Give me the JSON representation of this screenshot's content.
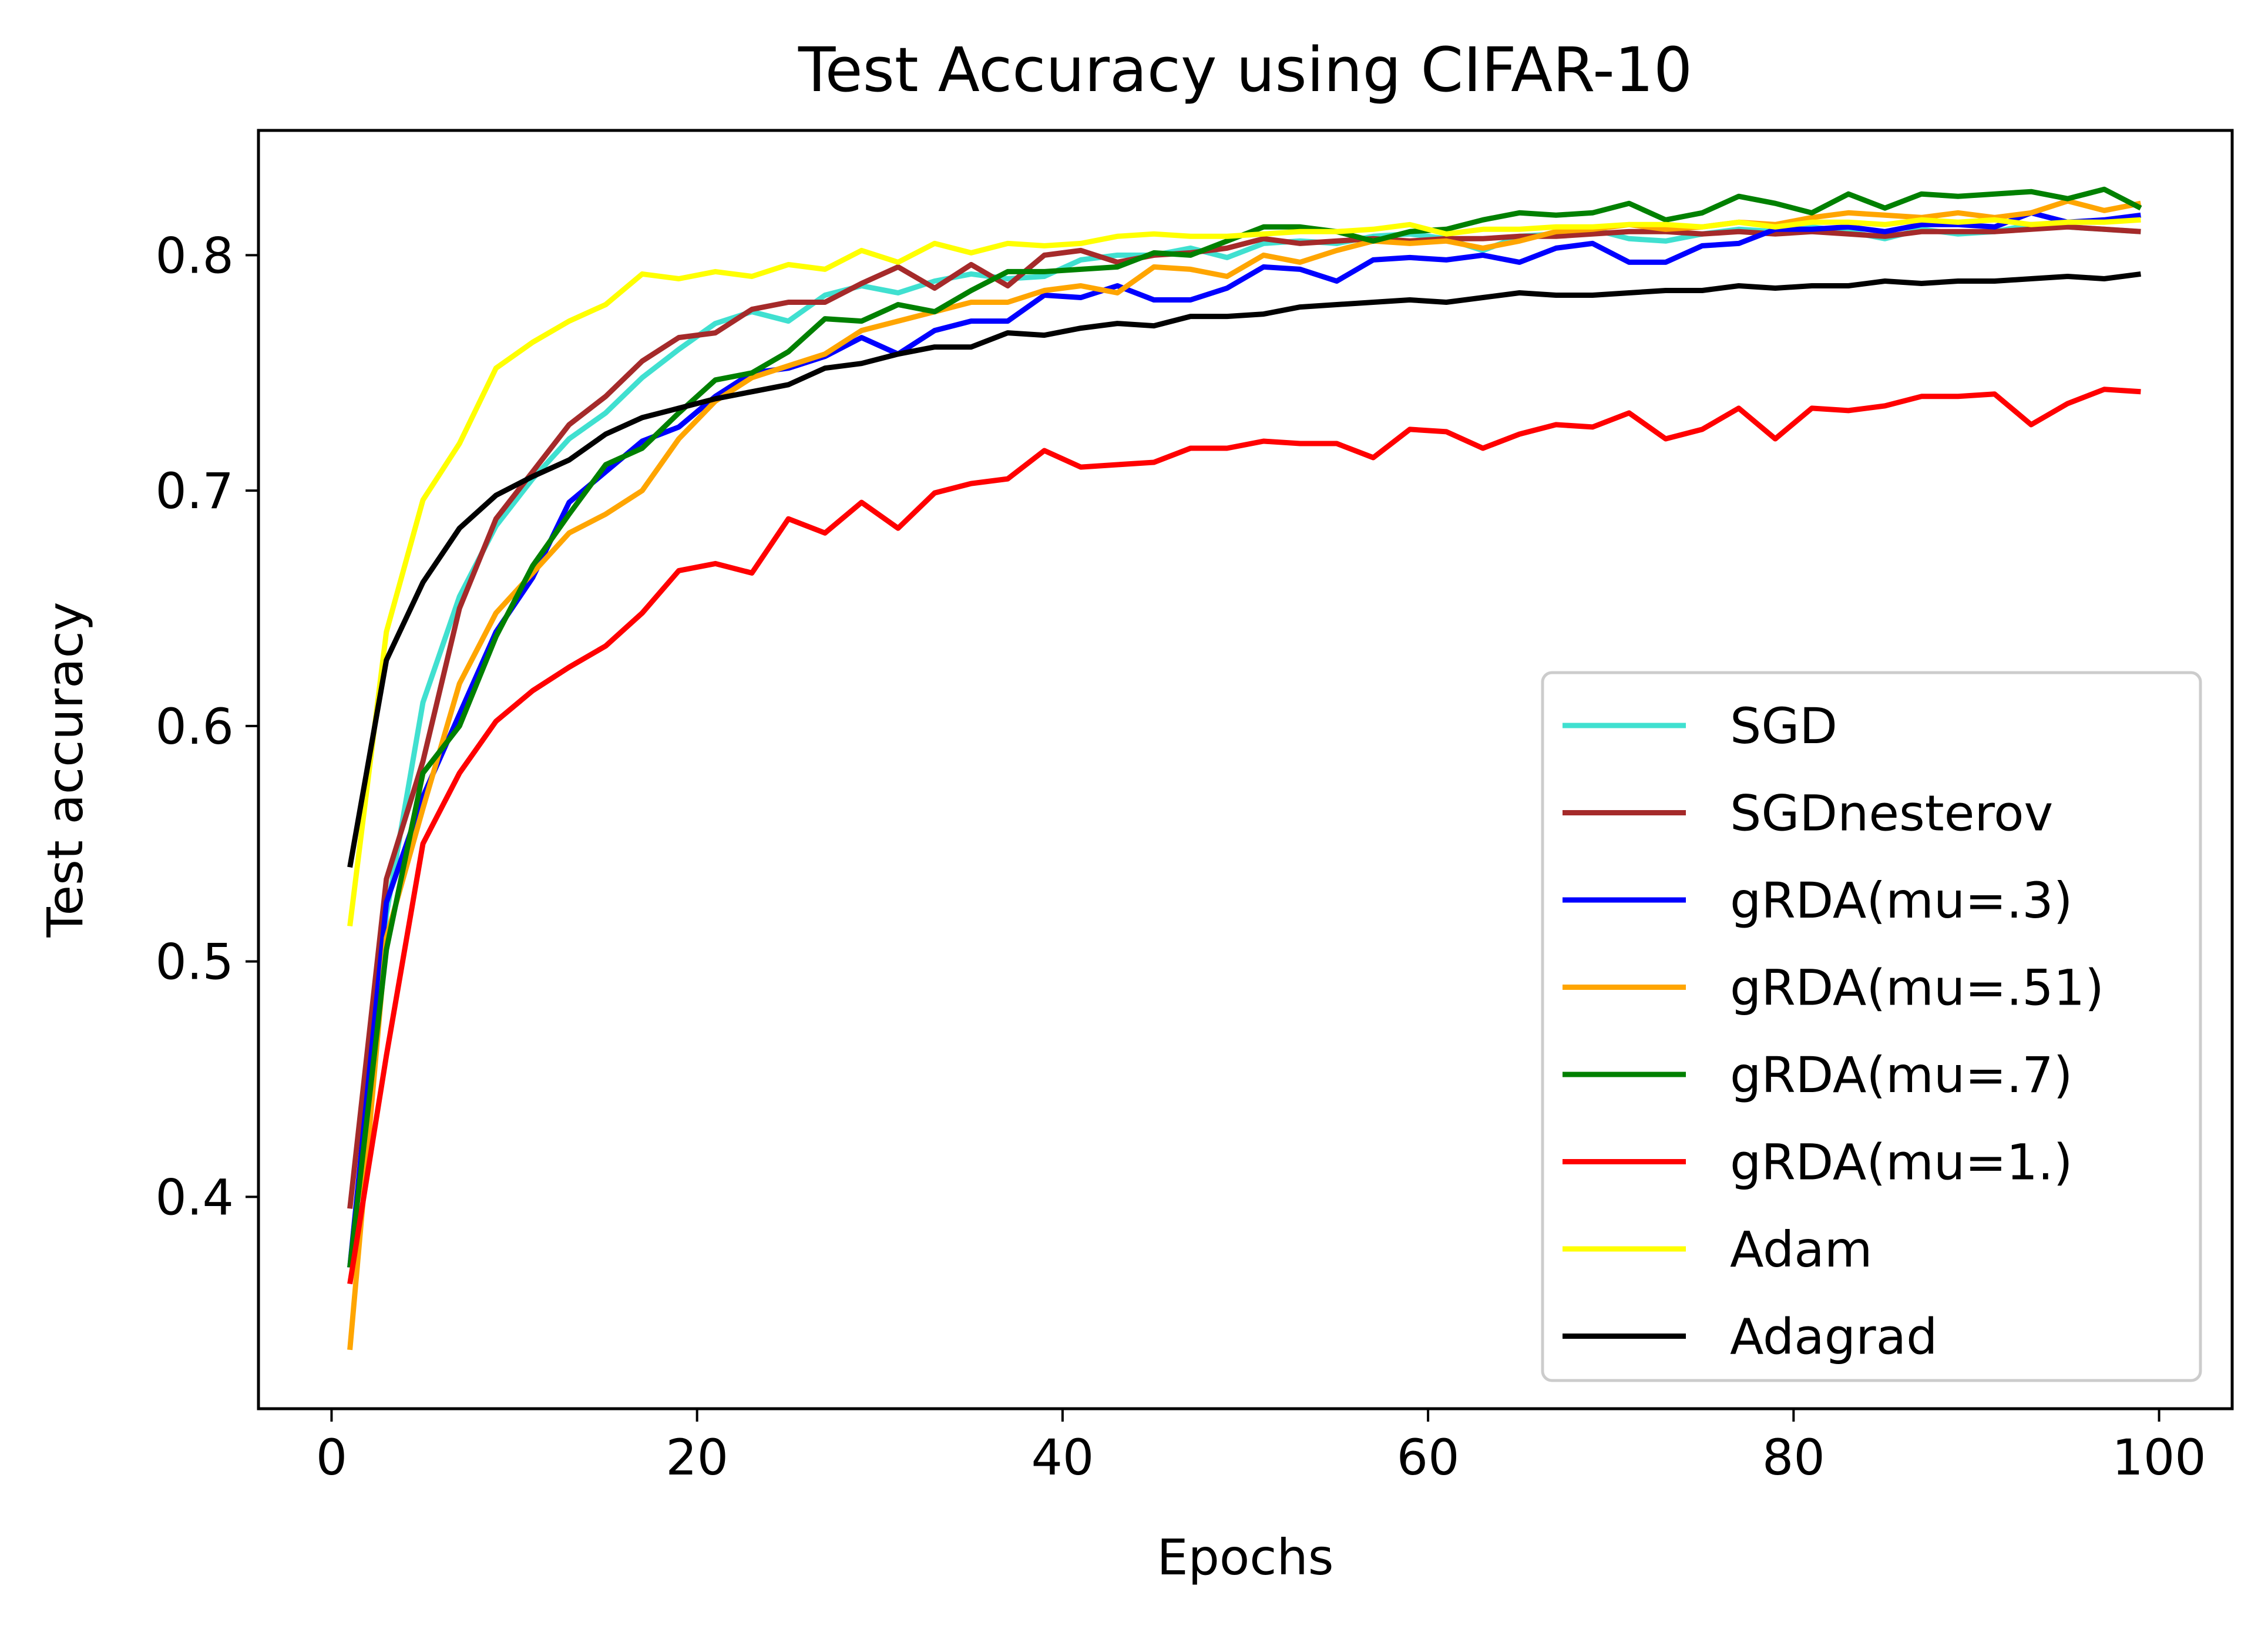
{
  "chart_data": {
    "type": "line",
    "title": "Test Accuracy using CIFAR-10",
    "xlabel": "Epochs",
    "ylabel": "Test accuracy",
    "xlim": [
      -4,
      104
    ],
    "ylim": [
      0.31,
      0.853
    ],
    "xticks": [
      0,
      20,
      40,
      60,
      80,
      100
    ],
    "yticks": [
      0.4,
      0.5,
      0.6,
      0.7,
      0.8
    ],
    "ytick_labels": [
      "0.4",
      "0.5",
      "0.6",
      "0.7",
      "0.8"
    ],
    "grid": false,
    "legend_position": "lower-right",
    "x": [
      1,
      3,
      5,
      7,
      9,
      11,
      13,
      15,
      17,
      19,
      21,
      23,
      25,
      27,
      29,
      31,
      33,
      35,
      37,
      39,
      41,
      43,
      45,
      47,
      49,
      51,
      53,
      55,
      57,
      59,
      61,
      63,
      65,
      67,
      69,
      71,
      73,
      75,
      77,
      79,
      81,
      83,
      85,
      87,
      89,
      91,
      93,
      95,
      97,
      99
    ],
    "series": [
      {
        "name": "SGD",
        "color": "#40e0d0",
        "values": [
          0.37,
          0.52,
          0.61,
          0.655,
          0.685,
          0.705,
          0.722,
          0.733,
          0.748,
          0.76,
          0.771,
          0.776,
          0.772,
          0.783,
          0.787,
          0.784,
          0.789,
          0.792,
          0.79,
          0.791,
          0.798,
          0.8,
          0.8,
          0.803,
          0.799,
          0.805,
          0.806,
          0.805,
          0.808,
          0.809,
          0.807,
          0.802,
          0.808,
          0.809,
          0.811,
          0.807,
          0.806,
          0.809,
          0.811,
          0.81,
          0.812,
          0.81,
          0.807,
          0.811,
          0.809,
          0.81,
          0.813,
          0.812,
          0.811,
          0.81
        ]
      },
      {
        "name": "SGDnesterov",
        "color": "#a52a2a",
        "values": [
          0.395,
          0.535,
          0.585,
          0.65,
          0.688,
          0.708,
          0.728,
          0.74,
          0.755,
          0.765,
          0.767,
          0.777,
          0.78,
          0.78,
          0.788,
          0.795,
          0.786,
          0.796,
          0.787,
          0.8,
          0.802,
          0.797,
          0.8,
          0.801,
          0.803,
          0.807,
          0.805,
          0.806,
          0.807,
          0.806,
          0.807,
          0.807,
          0.808,
          0.808,
          0.809,
          0.81,
          0.81,
          0.809,
          0.81,
          0.809,
          0.81,
          0.809,
          0.808,
          0.81,
          0.81,
          0.81,
          0.811,
          0.812,
          0.811,
          0.81
        ]
      },
      {
        "name": "gRDA(mu=.3)",
        "color": "#0000ff",
        "values": [
          0.37,
          0.525,
          0.57,
          0.605,
          0.64,
          0.663,
          0.695,
          0.708,
          0.721,
          0.727,
          0.74,
          0.75,
          0.752,
          0.757,
          0.765,
          0.758,
          0.768,
          0.772,
          0.772,
          0.783,
          0.782,
          0.787,
          0.781,
          0.781,
          0.786,
          0.795,
          0.794,
          0.789,
          0.798,
          0.799,
          0.798,
          0.8,
          0.797,
          0.803,
          0.805,
          0.797,
          0.797,
          0.804,
          0.805,
          0.811,
          0.811,
          0.812,
          0.81,
          0.813,
          0.813,
          0.812,
          0.818,
          0.814,
          0.815,
          0.817
        ]
      },
      {
        "name": "gRDA(mu=.51)",
        "color": "#ffa500",
        "values": [
          0.335,
          0.51,
          0.565,
          0.618,
          0.648,
          0.665,
          0.682,
          0.69,
          0.7,
          0.722,
          0.738,
          0.748,
          0.753,
          0.758,
          0.768,
          0.772,
          0.776,
          0.78,
          0.78,
          0.785,
          0.787,
          0.784,
          0.795,
          0.794,
          0.791,
          0.8,
          0.797,
          0.802,
          0.806,
          0.805,
          0.806,
          0.803,
          0.806,
          0.81,
          0.811,
          0.813,
          0.811,
          0.812,
          0.814,
          0.813,
          0.816,
          0.818,
          0.817,
          0.816,
          0.818,
          0.816,
          0.818,
          0.823,
          0.819,
          0.822
        ]
      },
      {
        "name": "gRDA(mu=.7)",
        "color": "#008000",
        "values": [
          0.37,
          0.505,
          0.58,
          0.6,
          0.638,
          0.668,
          0.69,
          0.711,
          0.718,
          0.733,
          0.747,
          0.75,
          0.759,
          0.773,
          0.772,
          0.779,
          0.776,
          0.785,
          0.793,
          0.793,
          0.794,
          0.795,
          0.801,
          0.8,
          0.806,
          0.812,
          0.812,
          0.81,
          0.806,
          0.81,
          0.811,
          0.815,
          0.818,
          0.817,
          0.818,
          0.822,
          0.815,
          0.818,
          0.825,
          0.822,
          0.818,
          0.826,
          0.82,
          0.826,
          0.825,
          0.826,
          0.827,
          0.824,
          0.828,
          0.82
        ]
      },
      {
        "name": "gRDA(mu=1.)",
        "color": "#ff0000",
        "values": [
          0.363,
          0.46,
          0.55,
          0.58,
          0.602,
          0.615,
          0.625,
          0.634,
          0.648,
          0.666,
          0.669,
          0.665,
          0.688,
          0.682,
          0.695,
          0.684,
          0.699,
          0.703,
          0.705,
          0.717,
          0.71,
          0.711,
          0.712,
          0.718,
          0.718,
          0.721,
          0.72,
          0.72,
          0.714,
          0.726,
          0.725,
          0.718,
          0.724,
          0.728,
          0.727,
          0.733,
          0.722,
          0.726,
          0.735,
          0.722,
          0.735,
          0.734,
          0.736,
          0.74,
          0.74,
          0.741,
          0.728,
          0.737,
          0.743,
          0.742
        ]
      },
      {
        "name": "Adam",
        "color": "#ffff00",
        "values": [
          0.515,
          0.64,
          0.696,
          0.72,
          0.752,
          0.763,
          0.772,
          0.779,
          0.792,
          0.79,
          0.793,
          0.791,
          0.796,
          0.794,
          0.802,
          0.797,
          0.805,
          0.801,
          0.805,
          0.804,
          0.805,
          0.808,
          0.809,
          0.808,
          0.808,
          0.809,
          0.81,
          0.81,
          0.811,
          0.813,
          0.809,
          0.811,
          0.811,
          0.812,
          0.812,
          0.813,
          0.813,
          0.812,
          0.814,
          0.812,
          0.814,
          0.814,
          0.813,
          0.815,
          0.814,
          0.815,
          0.813,
          0.814,
          0.814,
          0.815
        ]
      },
      {
        "name": "Adagrad",
        "color": "#000000",
        "values": [
          0.54,
          0.628,
          0.661,
          0.684,
          0.698,
          0.706,
          0.713,
          0.724,
          0.731,
          0.735,
          0.739,
          0.742,
          0.745,
          0.752,
          0.754,
          0.758,
          0.761,
          0.761,
          0.767,
          0.766,
          0.769,
          0.771,
          0.77,
          0.774,
          0.774,
          0.775,
          0.778,
          0.779,
          0.78,
          0.781,
          0.78,
          0.782,
          0.784,
          0.783,
          0.783,
          0.784,
          0.785,
          0.785,
          0.787,
          0.786,
          0.787,
          0.787,
          0.789,
          0.788,
          0.789,
          0.789,
          0.79,
          0.791,
          0.79,
          0.792
        ]
      }
    ]
  }
}
